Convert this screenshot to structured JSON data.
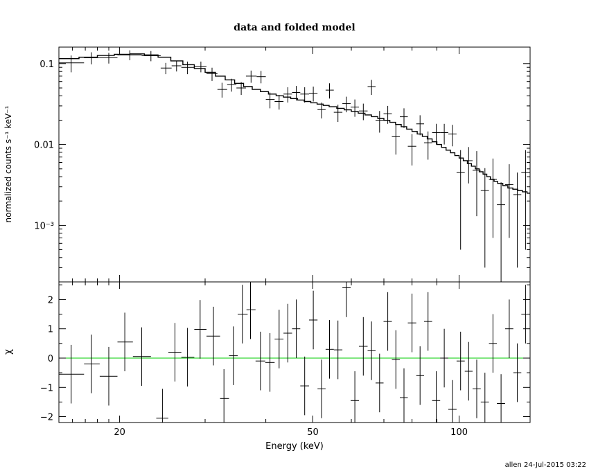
{
  "chart_data": [
    {
      "type": "line",
      "panel": "upper",
      "title": "data and folded model",
      "xlabel": "",
      "ylabel": "normalized counts s⁻¹ keV⁻¹",
      "xscale": "log",
      "yscale": "log",
      "xlim": [
        15,
        140
      ],
      "ylim": [
        0.0002,
        0.16
      ],
      "yticks": [
        {
          "v": 0.1,
          "label": "0.1"
        },
        {
          "v": 0.01,
          "label": "0.01"
        },
        {
          "v": 0.001,
          "label": "10⁻³"
        }
      ],
      "grid": false,
      "data_points": [
        [
          15.9,
          0.102,
          15.0,
          16.9,
          0.024
        ],
        [
          17.5,
          0.118,
          16.9,
          18.2,
          0.02
        ],
        [
          19.0,
          0.118,
          18.2,
          19.8,
          0.018
        ],
        [
          21.0,
          0.128,
          19.8,
          22.2,
          0.018
        ],
        [
          23.2,
          0.125,
          22.2,
          24.3,
          0.018
        ],
        [
          24.9,
          0.088,
          24.3,
          25.6,
          0.014
        ],
        [
          26.2,
          0.094,
          25.6,
          26.8,
          0.014
        ],
        [
          27.6,
          0.09,
          26.8,
          28.5,
          0.016
        ],
        [
          29.4,
          0.092,
          28.5,
          30.2,
          0.014
        ],
        [
          31.0,
          0.075,
          30.2,
          31.8,
          0.014
        ],
        [
          32.5,
          0.048,
          31.8,
          33.3,
          0.01
        ],
        [
          34.0,
          0.055,
          33.3,
          34.8,
          0.01
        ],
        [
          35.6,
          0.05,
          34.8,
          36.4,
          0.009
        ],
        [
          37.3,
          0.07,
          36.4,
          38.3,
          0.012
        ],
        [
          39.1,
          0.069,
          38.3,
          40.0,
          0.012
        ],
        [
          40.8,
          0.036,
          40.0,
          41.7,
          0.008
        ],
        [
          42.6,
          0.034,
          41.7,
          43.5,
          0.007
        ],
        [
          44.4,
          0.042,
          43.5,
          45.3,
          0.009
        ],
        [
          46.2,
          0.044,
          45.3,
          47.1,
          0.009
        ],
        [
          48.1,
          0.042,
          47.1,
          49.1,
          0.009
        ],
        [
          50.1,
          0.043,
          49.1,
          51.1,
          0.009
        ],
        [
          52.1,
          0.027,
          51.1,
          53.1,
          0.006
        ],
        [
          54.1,
          0.047,
          53.1,
          55.2,
          0.01
        ],
        [
          56.3,
          0.025,
          55.2,
          57.5,
          0.006
        ],
        [
          58.6,
          0.032,
          57.5,
          59.8,
          0.007
        ],
        [
          61.0,
          0.029,
          59.8,
          62.2,
          0.007
        ],
        [
          63.5,
          0.026,
          62.2,
          64.8,
          0.006
        ],
        [
          66.0,
          0.052,
          64.8,
          67.3,
          0.011
        ],
        [
          68.6,
          0.02,
          67.3,
          69.9,
          0.006
        ],
        [
          71.3,
          0.024,
          69.9,
          72.7,
          0.006
        ],
        [
          74.1,
          0.0125,
          72.7,
          75.5,
          0.005
        ],
        [
          77.0,
          0.022,
          75.5,
          78.4,
          0.006
        ],
        [
          80.0,
          0.0095,
          78.4,
          81.6,
          0.004
        ],
        [
          83.1,
          0.018,
          81.6,
          84.7,
          0.005
        ],
        [
          86.3,
          0.0105,
          84.7,
          88.0,
          0.004
        ],
        [
          89.7,
          0.014,
          88.0,
          91.4,
          0.004
        ],
        [
          93.2,
          0.014,
          91.4,
          95.0,
          0.004
        ],
        [
          96.9,
          0.0135,
          95.0,
          98.8,
          0.004
        ],
        [
          100.7,
          0.0045,
          98.8,
          102.7,
          0.004
        ],
        [
          104.6,
          0.0063,
          102.7,
          106.6,
          0.003
        ],
        [
          108.7,
          0.0048,
          106.6,
          110.8,
          0.0035
        ],
        [
          113.0,
          0.0027,
          110.8,
          115.2,
          0.0024
        ],
        [
          117.4,
          0.0037,
          115.2,
          119.6,
          0.003
        ],
        [
          122.0,
          0.0018,
          119.6,
          124.4,
          0.0016
        ],
        [
          126.8,
          0.0032,
          124.4,
          129.3,
          0.0025
        ],
        [
          131.8,
          0.0024,
          129.3,
          134.3,
          0.0021
        ],
        [
          137.0,
          0.0045,
          134.3,
          140.0,
          0.004
        ]
      ],
      "model_steps": [
        [
          15.0,
          0.115
        ],
        [
          16.5,
          0.12
        ],
        [
          18.0,
          0.126
        ],
        [
          19.5,
          0.13
        ],
        [
          21.0,
          0.132
        ],
        [
          22.5,
          0.128
        ],
        [
          24.0,
          0.12
        ],
        [
          25.5,
          0.108
        ],
        [
          27.0,
          0.097
        ],
        [
          28.5,
          0.087
        ],
        [
          30.0,
          0.078
        ],
        [
          31.5,
          0.07
        ],
        [
          33.0,
          0.063
        ],
        [
          34.5,
          0.057
        ],
        [
          36.0,
          0.052
        ],
        [
          37.5,
          0.048
        ],
        [
          39.0,
          0.045
        ],
        [
          40.5,
          0.042
        ],
        [
          42.0,
          0.04
        ],
        [
          43.5,
          0.0385
        ],
        [
          45.0,
          0.037
        ],
        [
          46.5,
          0.0355
        ],
        [
          48.0,
          0.034
        ],
        [
          49.5,
          0.0328
        ],
        [
          51.0,
          0.0316
        ],
        [
          52.5,
          0.0304
        ],
        [
          54.0,
          0.0293
        ],
        [
          56.0,
          0.028
        ],
        [
          58.0,
          0.0268
        ],
        [
          60.0,
          0.0256
        ],
        [
          62.0,
          0.0244
        ],
        [
          64.0,
          0.0232
        ],
        [
          66.0,
          0.0221
        ],
        [
          68.0,
          0.021
        ],
        [
          70.0,
          0.0199
        ],
        [
          72.0,
          0.0188
        ],
        [
          74.0,
          0.0177
        ],
        [
          76.0,
          0.0166
        ],
        [
          78.0,
          0.0155
        ],
        [
          80.0,
          0.0145
        ],
        [
          82.0,
          0.0135
        ],
        [
          84.0,
          0.0126
        ],
        [
          86.0,
          0.0117
        ],
        [
          88.0,
          0.0108
        ],
        [
          90.0,
          0.01
        ],
        [
          92.0,
          0.0092
        ],
        [
          94.0,
          0.0085
        ],
        [
          96.0,
          0.0079
        ],
        [
          98.0,
          0.0073
        ],
        [
          100.0,
          0.0068
        ],
        [
          102.0,
          0.0063
        ],
        [
          104.0,
          0.0058
        ],
        [
          106.0,
          0.0054
        ],
        [
          108.0,
          0.005
        ],
        [
          110.0,
          0.0046
        ],
        [
          112.0,
          0.0043
        ],
        [
          114.0,
          0.004
        ],
        [
          116.0,
          0.0037
        ],
        [
          118.0,
          0.0035
        ],
        [
          120.0,
          0.0033
        ],
        [
          123.0,
          0.0031
        ],
        [
          126.0,
          0.0029
        ],
        [
          129.0,
          0.0028
        ],
        [
          132.0,
          0.0027
        ],
        [
          135.0,
          0.0026
        ],
        [
          138.0,
          0.0025
        ],
        [
          140.0,
          0.0025
        ]
      ]
    },
    {
      "type": "scatter",
      "panel": "lower",
      "xlabel": "Energy (keV)",
      "ylabel": "χ",
      "xscale": "log",
      "xlim": [
        15,
        140
      ],
      "ylim": [
        -2.2,
        2.6
      ],
      "xticks": [
        {
          "v": 20,
          "label": "20"
        },
        {
          "v": 50,
          "label": "50"
        },
        {
          "v": 100,
          "label": "100"
        }
      ],
      "yticks": [
        {
          "v": -2,
          "label": "−2"
        },
        {
          "v": -1,
          "label": "−1"
        },
        {
          "v": 0,
          "label": "0"
        },
        {
          "v": 1,
          "label": "1"
        },
        {
          "v": 2,
          "label": "2"
        }
      ],
      "reference_line": {
        "y": 0,
        "color": "#00cc00"
      },
      "grid": false,
      "residuals": [
        [
          15.9,
          -0.55,
          15.0,
          16.9,
          1.0
        ],
        [
          17.5,
          -0.2,
          16.9,
          18.2,
          1.0
        ],
        [
          19.0,
          -0.62,
          18.2,
          19.8,
          1.0
        ],
        [
          20.5,
          0.55,
          19.8,
          21.3,
          1.0
        ],
        [
          22.2,
          0.05,
          21.3,
          23.2,
          1.0
        ],
        [
          24.5,
          -2.05,
          23.8,
          25.2,
          1.0
        ],
        [
          26.0,
          0.2,
          25.2,
          26.8,
          1.0
        ],
        [
          27.6,
          0.03,
          26.8,
          28.5,
          1.0
        ],
        [
          29.3,
          0.98,
          28.5,
          30.2,
          1.0
        ],
        [
          31.2,
          0.75,
          30.2,
          32.2,
          1.0
        ],
        [
          32.8,
          -1.38,
          32.2,
          33.6,
          1.0
        ],
        [
          34.3,
          0.08,
          33.6,
          35.0,
          1.0
        ],
        [
          35.8,
          1.5,
          35.0,
          36.7,
          1.0
        ],
        [
          37.2,
          1.65,
          36.5,
          38.1,
          1.0
        ],
        [
          39.0,
          -0.1,
          38.1,
          39.9,
          1.0
        ],
        [
          40.8,
          -0.15,
          39.9,
          41.7,
          1.0
        ],
        [
          42.6,
          0.65,
          41.7,
          43.5,
          1.0
        ],
        [
          44.4,
          0.85,
          43.5,
          45.3,
          1.0
        ],
        [
          46.2,
          1.0,
          45.3,
          47.1,
          1.0
        ],
        [
          48.1,
          -0.95,
          47.1,
          49.1,
          1.0
        ],
        [
          50.1,
          1.3,
          49.1,
          51.1,
          1.0
        ],
        [
          52.1,
          -1.05,
          51.1,
          53.1,
          1.0
        ],
        [
          54.1,
          0.3,
          53.1,
          55.2,
          1.0
        ],
        [
          56.3,
          0.28,
          55.2,
          57.5,
          1.0
        ],
        [
          58.6,
          2.4,
          57.5,
          59.8,
          1.0
        ],
        [
          61.0,
          -1.45,
          59.8,
          62.2,
          1.0
        ],
        [
          63.5,
          0.4,
          62.2,
          64.8,
          1.0
        ],
        [
          66.0,
          0.25,
          64.8,
          67.3,
          1.0
        ],
        [
          68.6,
          -0.85,
          67.3,
          69.9,
          1.0
        ],
        [
          71.3,
          1.25,
          69.9,
          72.7,
          1.0
        ],
        [
          74.1,
          -0.05,
          72.7,
          75.5,
          1.0
        ],
        [
          77.0,
          -1.35,
          75.5,
          78.4,
          1.0
        ],
        [
          80.0,
          1.2,
          78.4,
          81.6,
          1.0
        ],
        [
          83.1,
          -0.6,
          81.6,
          84.7,
          1.0
        ],
        [
          86.3,
          1.25,
          84.7,
          88.0,
          1.0
        ],
        [
          89.7,
          -1.45,
          88.0,
          91.4,
          1.0
        ],
        [
          93.2,
          0.0,
          91.4,
          95.0,
          1.0
        ],
        [
          96.9,
          -1.75,
          95.0,
          98.8,
          1.0
        ],
        [
          100.7,
          -0.1,
          98.8,
          102.7,
          1.0
        ],
        [
          104.6,
          -0.45,
          102.7,
          106.6,
          1.0
        ],
        [
          108.7,
          -1.05,
          106.6,
          110.8,
          1.0
        ],
        [
          113.0,
          -1.5,
          110.8,
          115.2,
          1.0
        ],
        [
          117.4,
          0.5,
          115.2,
          119.6,
          1.0
        ],
        [
          122.0,
          -1.55,
          119.6,
          124.4,
          1.0
        ],
        [
          126.8,
          1.0,
          124.4,
          129.3,
          1.0
        ],
        [
          131.8,
          -0.5,
          129.3,
          134.3,
          1.0
        ],
        [
          137.0,
          1.5,
          134.3,
          140.0,
          1.0
        ]
      ]
    }
  ],
  "footer": {
    "credit": "allen 24-Jul-2015 03:22"
  }
}
